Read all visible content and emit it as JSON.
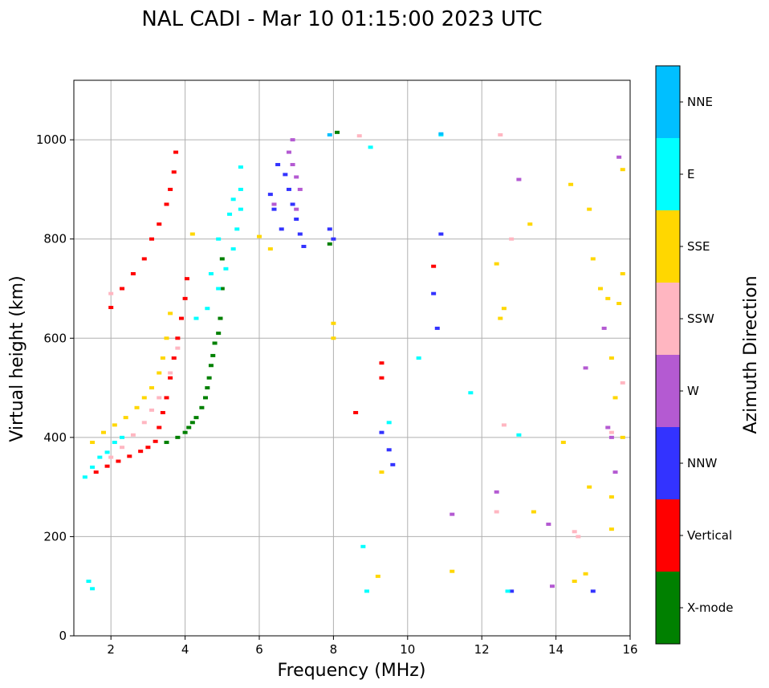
{
  "chart_data": {
    "type": "scatter",
    "title": "NAL CADI - Mar 10 01:15:00 2023 UTC",
    "xlabel": "Frequency (MHz)",
    "ylabel": "Virtual height (km)",
    "xlim": [
      1,
      16
    ],
    "ylim": [
      0,
      1120
    ],
    "xticks": [
      2,
      4,
      6,
      8,
      10,
      12,
      14,
      16
    ],
    "yticks": [
      0,
      200,
      400,
      600,
      800,
      1000
    ],
    "grid": true,
    "colorbar": {
      "label": "Azimuth Direction",
      "categories": [
        {
          "name": "X-mode",
          "color": "#008000"
        },
        {
          "name": "Vertical",
          "color": "#ff0000"
        },
        {
          "name": "NNW",
          "color": "#3333ff"
        },
        {
          "name": "W",
          "color": "#b45ad2"
        },
        {
          "name": "SSW",
          "color": "#ffb6c1"
        },
        {
          "name": "SSE",
          "color": "#ffd700"
        },
        {
          "name": "E",
          "color": "#00ffff"
        },
        {
          "name": "NNE",
          "color": "#00bfff"
        }
      ]
    },
    "traces": [
      {
        "direction": "Vertical",
        "points": [
          [
            1.6,
            330
          ],
          [
            1.9,
            342
          ],
          [
            2.2,
            352
          ],
          [
            2.5,
            362
          ],
          [
            2.8,
            372
          ],
          [
            3.0,
            380
          ],
          [
            3.2,
            392
          ],
          [
            3.3,
            420
          ],
          [
            3.4,
            450
          ],
          [
            3.5,
            480
          ],
          [
            3.6,
            520
          ],
          [
            3.7,
            560
          ],
          [
            3.8,
            600
          ],
          [
            3.9,
            640
          ],
          [
            4.0,
            680
          ],
          [
            4.05,
            720
          ],
          [
            2.0,
            662
          ],
          [
            2.3,
            700
          ],
          [
            2.6,
            730
          ],
          [
            2.9,
            760
          ],
          [
            3.1,
            800
          ],
          [
            3.3,
            830
          ],
          [
            3.5,
            870
          ],
          [
            3.6,
            900
          ],
          [
            3.7,
            935
          ],
          [
            3.75,
            975
          ],
          [
            9.3,
            550
          ],
          [
            9.3,
            520
          ],
          [
            10.7,
            745
          ],
          [
            8.6,
            450
          ]
        ]
      },
      {
        "direction": "X-mode",
        "points": [
          [
            3.5,
            390
          ],
          [
            3.8,
            400
          ],
          [
            4.0,
            410
          ],
          [
            4.1,
            420
          ],
          [
            4.2,
            430
          ],
          [
            4.3,
            440
          ],
          [
            4.45,
            460
          ],
          [
            4.55,
            480
          ],
          [
            4.6,
            500
          ],
          [
            4.65,
            520
          ],
          [
            4.7,
            545
          ],
          [
            4.75,
            565
          ],
          [
            4.8,
            590
          ],
          [
            4.9,
            610
          ],
          [
            4.95,
            640
          ],
          [
            5.0,
            700
          ],
          [
            5.0,
            760
          ],
          [
            7.9,
            790
          ],
          [
            8.1,
            1015
          ]
        ]
      },
      {
        "direction": "NNW",
        "points": [
          [
            6.5,
            950
          ],
          [
            6.7,
            930
          ],
          [
            6.8,
            900
          ],
          [
            6.9,
            870
          ],
          [
            7.0,
            840
          ],
          [
            7.1,
            810
          ],
          [
            7.2,
            785
          ],
          [
            6.3,
            890
          ],
          [
            6.4,
            860
          ],
          [
            6.6,
            820
          ],
          [
            7.9,
            820
          ],
          [
            8.0,
            800
          ],
          [
            9.3,
            410
          ],
          [
            9.5,
            375
          ],
          [
            9.6,
            345
          ],
          [
            10.7,
            690
          ],
          [
            10.8,
            620
          ],
          [
            10.9,
            810
          ],
          [
            15.0,
            90
          ],
          [
            12.8,
            90
          ]
        ]
      },
      {
        "direction": "W",
        "points": [
          [
            6.9,
            1000
          ],
          [
            6.8,
            975
          ],
          [
            6.9,
            950
          ],
          [
            7.0,
            925
          ],
          [
            7.1,
            900
          ],
          [
            6.4,
            870
          ],
          [
            7.0,
            860
          ],
          [
            13.0,
            920
          ],
          [
            15.3,
            620
          ],
          [
            14.8,
            540
          ],
          [
            15.4,
            420
          ],
          [
            15.5,
            400
          ],
          [
            15.6,
            330
          ],
          [
            12.4,
            290
          ],
          [
            11.2,
            245
          ],
          [
            13.8,
            225
          ],
          [
            13.9,
            100
          ],
          [
            15.7,
            965
          ]
        ]
      },
      {
        "direction": "SSW",
        "points": [
          [
            2.0,
            360
          ],
          [
            2.3,
            380
          ],
          [
            2.6,
            405
          ],
          [
            2.9,
            430
          ],
          [
            3.1,
            455
          ],
          [
            3.3,
            480
          ],
          [
            3.6,
            530
          ],
          [
            3.8,
            580
          ],
          [
            2.0,
            690
          ],
          [
            12.4,
            250
          ],
          [
            14.5,
            210
          ],
          [
            14.6,
            200
          ],
          [
            15.5,
            410
          ],
          [
            15.8,
            510
          ],
          [
            12.6,
            425
          ],
          [
            12.5,
            1010
          ],
          [
            8.7,
            1008
          ],
          [
            12.8,
            800
          ]
        ]
      },
      {
        "direction": "SSE",
        "points": [
          [
            1.5,
            390
          ],
          [
            1.8,
            410
          ],
          [
            2.1,
            425
          ],
          [
            2.4,
            440
          ],
          [
            2.7,
            460
          ],
          [
            2.9,
            480
          ],
          [
            3.1,
            500
          ],
          [
            3.3,
            530
          ],
          [
            3.4,
            560
          ],
          [
            3.5,
            600
          ],
          [
            3.6,
            650
          ],
          [
            4.2,
            810
          ],
          [
            6.0,
            805
          ],
          [
            6.3,
            780
          ],
          [
            8.0,
            600
          ],
          [
            8.0,
            630
          ],
          [
            9.3,
            330
          ],
          [
            9.2,
            120
          ],
          [
            11.2,
            130
          ],
          [
            12.4,
            750
          ],
          [
            12.5,
            640
          ],
          [
            12.6,
            660
          ],
          [
            13.3,
            830
          ],
          [
            14.4,
            910
          ],
          [
            14.9,
            860
          ],
          [
            15.0,
            760
          ],
          [
            15.2,
            700
          ],
          [
            15.4,
            680
          ],
          [
            15.5,
            560
          ],
          [
            15.6,
            480
          ],
          [
            15.8,
            400
          ],
          [
            14.2,
            390
          ],
          [
            14.9,
            300
          ],
          [
            15.5,
            280
          ],
          [
            15.5,
            215
          ],
          [
            14.8,
            125
          ],
          [
            14.5,
            110
          ],
          [
            13.4,
            250
          ],
          [
            15.8,
            940
          ],
          [
            15.8,
            730
          ],
          [
            15.7,
            670
          ]
        ]
      },
      {
        "direction": "E",
        "points": [
          [
            1.3,
            320
          ],
          [
            1.5,
            340
          ],
          [
            1.7,
            360
          ],
          [
            1.9,
            370
          ],
          [
            2.1,
            390
          ],
          [
            2.3,
            400
          ],
          [
            4.3,
            640
          ],
          [
            4.6,
            660
          ],
          [
            4.9,
            700
          ],
          [
            5.1,
            740
          ],
          [
            5.3,
            780
          ],
          [
            5.4,
            820
          ],
          [
            5.5,
            860
          ],
          [
            5.5,
            900
          ],
          [
            5.5,
            945
          ],
          [
            5.3,
            880
          ],
          [
            5.2,
            850
          ],
          [
            4.9,
            800
          ],
          [
            4.7,
            730
          ],
          [
            1.4,
            110
          ],
          [
            1.5,
            95
          ],
          [
            8.8,
            180
          ],
          [
            8.9,
            90
          ],
          [
            9.5,
            430
          ],
          [
            10.3,
            560
          ],
          [
            11.7,
            490
          ],
          [
            12.7,
            90
          ],
          [
            13.0,
            405
          ],
          [
            9.0,
            985
          ],
          [
            10.9,
            1010
          ]
        ]
      },
      {
        "direction": "NNE",
        "points": [
          [
            7.9,
            1010
          ],
          [
            10.9,
            1012
          ]
        ]
      }
    ]
  }
}
